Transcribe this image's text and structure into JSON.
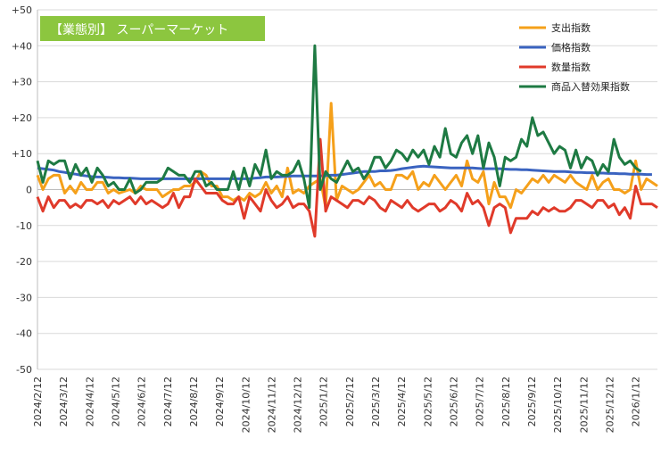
{
  "chart_data": {
    "type": "line",
    "title": "【業態別】 スーパーマーケット",
    "title_bg": "#8cc63f",
    "ylim": [
      -50,
      50
    ],
    "ytick_step": 10,
    "ytick_labels": [
      "+50",
      "+40",
      "+30",
      "+20",
      "+10",
      "0",
      "-10",
      "-20",
      "-30",
      "-40",
      "-50"
    ],
    "x_tick_labels": [
      "2024/2/12",
      "2024/3/12",
      "2024/4/12",
      "2024/5/12",
      "2024/6/12",
      "2024/7/12",
      "2024/8/12",
      "2024/9/12",
      "2024/10/12",
      "2024/11/12",
      "2024/12/12",
      "2025/1/12",
      "2025/2/12",
      "2025/3/12",
      "2025/4/12",
      "2025/5/12",
      "2025/6/12",
      "2025/7/12",
      "2025/8/12",
      "2025/9/12",
      "2025/10/12",
      "2025/11/12",
      "2025/12/12",
      "2026/1/12"
    ],
    "grid": true,
    "legend_position": "top-right",
    "series": [
      {
        "name": "支出指数",
        "color": "#f5a01a",
        "values": [
          4,
          0,
          3,
          4,
          4,
          -1,
          1,
          -1,
          2,
          0,
          0,
          2,
          2,
          -1,
          0,
          -1,
          -0.5,
          0,
          -1,
          1,
          0,
          0,
          0,
          -2,
          -1,
          0,
          0,
          1,
          1,
          2,
          5,
          4,
          1,
          1,
          -2,
          -2,
          -3,
          -2,
          -3,
          -1,
          -2,
          -1,
          2,
          -1,
          1,
          -2,
          6,
          -1,
          0,
          -1,
          1,
          2,
          3,
          -5,
          24,
          -3,
          1,
          0,
          -1,
          0,
          2,
          4,
          1,
          2,
          0,
          0,
          4,
          4,
          3,
          5,
          0,
          2,
          1,
          4,
          2,
          0,
          2,
          4,
          1,
          8,
          3,
          2,
          5,
          -4,
          2,
          -2,
          -2,
          -5,
          0,
          -1,
          1,
          3,
          2,
          4,
          2,
          4,
          3,
          2,
          4,
          2,
          1,
          0,
          4,
          0,
          2,
          3,
          0,
          0,
          -1,
          0,
          8,
          0,
          3,
          2,
          1
        ]
      },
      {
        "name": "価格指数",
        "color": "#3a63c0",
        "values": [
          6,
          5.8,
          5.6,
          5.4,
          5,
          4.8,
          4.5,
          4.3,
          4,
          3.8,
          3.6,
          3.5,
          3.5,
          3.4,
          3.3,
          3.3,
          3.2,
          3.2,
          3.1,
          3,
          3,
          3,
          3,
          3,
          3,
          3,
          3,
          3,
          3,
          3,
          3,
          3,
          3,
          3,
          3,
          3,
          3,
          3,
          3,
          3,
          3.2,
          3.3,
          3.5,
          3.5,
          3.5,
          3.6,
          3.7,
          3.8,
          3.8,
          3.8,
          3.8,
          3.8,
          3.8,
          3.9,
          4,
          4,
          4.2,
          4.4,
          4.6,
          4.8,
          5,
          5,
          5,
          5.2,
          5.2,
          5.3,
          5.5,
          5.8,
          6,
          6.2,
          6.4,
          6.5,
          6.4,
          6.3,
          6.2,
          6.1,
          6,
          6,
          6,
          6,
          6,
          5.9,
          5.8,
          5.8,
          5.8,
          5.8,
          5.7,
          5.6,
          5.6,
          5.5,
          5.5,
          5.4,
          5.3,
          5.2,
          5.1,
          5,
          5,
          5,
          4.9,
          4.8,
          4.8,
          4.7,
          4.7,
          4.6,
          4.6,
          4.5,
          4.5,
          4.4,
          4.4,
          4.3,
          4.3,
          4.3,
          4.2,
          4.2
        ]
      },
      {
        "name": "数量指数",
        "color": "#e03a2a",
        "values": [
          -2,
          -6,
          -2,
          -5,
          -3,
          -3,
          -5,
          -4,
          -5,
          -3,
          -3,
          -4,
          -3,
          -5,
          -3,
          -4,
          -3,
          -2,
          -4,
          -2,
          -4,
          -3,
          -4,
          -5,
          -4,
          -1,
          -5,
          -2,
          -2,
          3,
          1,
          -1,
          -1,
          -1,
          -3,
          -4,
          -4,
          -2,
          -8,
          -2,
          -4,
          -6,
          0,
          -3,
          -5,
          -4,
          -2,
          -5,
          -4,
          -4,
          -6,
          -13,
          14,
          -6,
          -2,
          -3,
          -4,
          -5,
          -3,
          -3,
          -4,
          -2,
          -3,
          -5,
          -6,
          -3,
          -4,
          -5,
          -3,
          -5,
          -6,
          -5,
          -4,
          -4,
          -6,
          -5,
          -3,
          -4,
          -6,
          -1,
          -4,
          -3,
          -5,
          -10,
          -5,
          -4,
          -5,
          -12,
          -8,
          -8,
          -8,
          -6,
          -7,
          -5,
          -6,
          -5,
          -6,
          -6,
          -5,
          -3,
          -3,
          -4,
          -5,
          -3,
          -3,
          -5,
          -4,
          -7,
          -5,
          -8,
          1,
          -4,
          -4,
          -4,
          -5
        ]
      },
      {
        "name": "商品入替効果指数",
        "color": "#1e7a43",
        "values": [
          8,
          2,
          8,
          7,
          8,
          8,
          3,
          7,
          4,
          6,
          2,
          6,
          4,
          1,
          2,
          0,
          0,
          3,
          -1,
          0,
          2,
          2,
          2,
          3,
          6,
          5,
          4,
          4,
          2,
          5,
          5,
          1,
          2,
          0,
          0,
          0,
          5,
          0,
          6,
          1,
          7,
          4,
          11,
          3,
          5,
          4,
          4,
          5,
          8,
          3,
          -5,
          40,
          0,
          5,
          3,
          2,
          5,
          8,
          5,
          6,
          3,
          5,
          9,
          9,
          6,
          8,
          11,
          10,
          8,
          11,
          9,
          11,
          7,
          12,
          9,
          17,
          10,
          9,
          13,
          15,
          10,
          15,
          6,
          13,
          9,
          1,
          9,
          8,
          9,
          14,
          12,
          20,
          15,
          16,
          13,
          10,
          12,
          11,
          6,
          11,
          6,
          9,
          8,
          4,
          7,
          5,
          14,
          9,
          7,
          8,
          6,
          5
        ]
      }
    ]
  }
}
